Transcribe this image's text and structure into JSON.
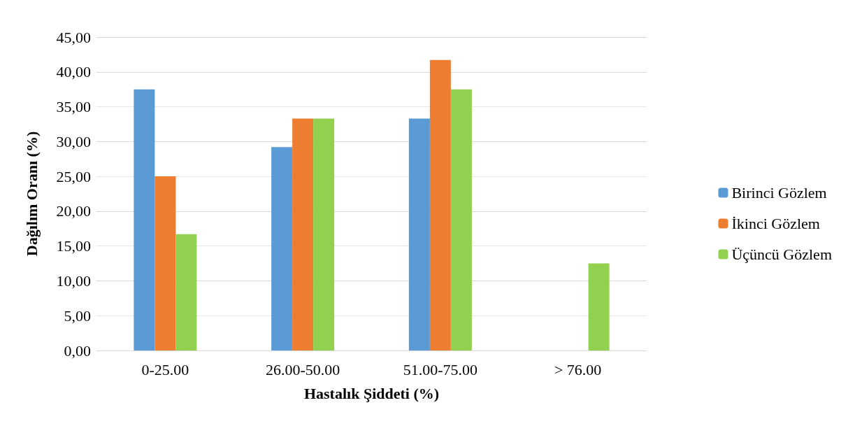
{
  "chart_data": {
    "type": "bar",
    "xlabel": "Hastalık Şiddeti (%)",
    "ylabel": "Dağılım Oranı (%)",
    "categories": [
      "0-25.00",
      "26.00-50.00",
      "51.00-75.00",
      "> 76.00"
    ],
    "series": [
      {
        "name": "Birinci Gözlem",
        "color": "#5b9bd5",
        "values": [
          37.5,
          29.2,
          33.3,
          0
        ]
      },
      {
        "name": "İkinci Gözlem",
        "color": "#ed7d31",
        "values": [
          25,
          33.3,
          41.7,
          0
        ]
      },
      {
        "name": "Üçüncü Gözlem",
        "color": "#92d050",
        "values": [
          16.7,
          33.3,
          37.5,
          12.5
        ]
      }
    ],
    "ylim": [
      0,
      45
    ],
    "yticks": [
      {
        "value": 0,
        "label": "0,00"
      },
      {
        "value": 5,
        "label": "5,00"
      },
      {
        "value": 10,
        "label": "10,00"
      },
      {
        "value": 15,
        "label": "15,00"
      },
      {
        "value": 20,
        "label": "20,00"
      },
      {
        "value": 25,
        "label": "25,00"
      },
      {
        "value": 30,
        "label": "30,00"
      },
      {
        "value": 35,
        "label": "35,00"
      },
      {
        "value": 40,
        "label": "40,00"
      },
      {
        "value": 45,
        "label": "45,00"
      }
    ],
    "grid": true,
    "legend": "right"
  }
}
